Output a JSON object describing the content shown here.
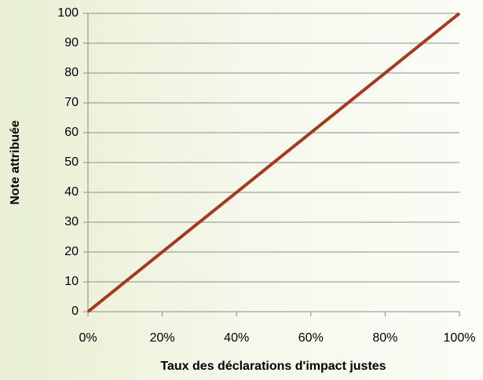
{
  "chart_data": {
    "type": "line",
    "x_label": "Taux des déclarations d'impact justes",
    "y_label": "Note attribuée",
    "x": [
      0,
      100
    ],
    "series": [
      {
        "color": "#a63a1e",
        "values": [
          0,
          100
        ]
      }
    ],
    "xlim": [
      0,
      100
    ],
    "xticks": [
      {
        "value": 0,
        "label": "0%"
      },
      {
        "value": 20,
        "label": "20%"
      },
      {
        "value": 40,
        "label": "40%"
      },
      {
        "value": 60,
        "label": "60%"
      },
      {
        "value": 80,
        "label": "80%"
      },
      {
        "value": 100,
        "label": "100%"
      }
    ],
    "ylim": [
      0,
      100
    ],
    "yticks": [
      0,
      10,
      20,
      30,
      40,
      50,
      60,
      70,
      80,
      90,
      100
    ],
    "grid": true
  }
}
